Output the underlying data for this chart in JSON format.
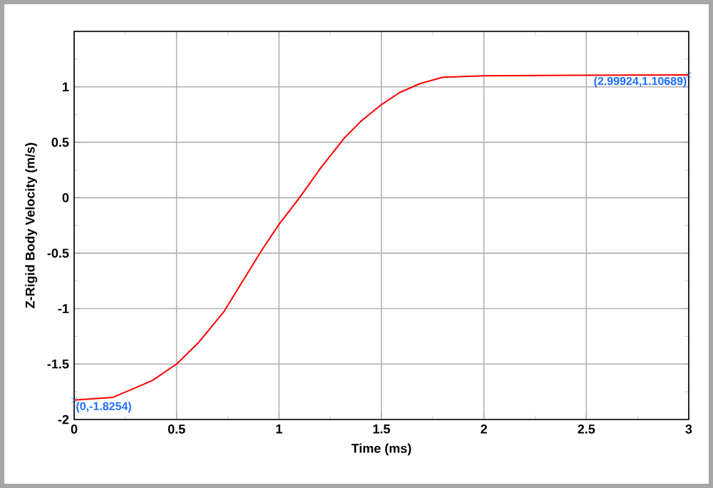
{
  "chart_data": {
    "type": "line",
    "xlabel": "Time (ms)",
    "ylabel": "Z-Rigid Body Velocity (m/s)",
    "x": [
      0,
      0.19,
      0.38,
      0.5,
      0.61,
      0.73,
      0.84,
      0.91,
      1.0,
      1.1,
      1.2,
      1.32,
      1.4,
      1.5,
      1.59,
      1.69,
      1.8,
      2.0,
      2.47,
      2.99924
    ],
    "series": [
      {
        "color": "#ff0000",
        "values": [
          -1.8254,
          -1.8,
          -1.65,
          -1.5,
          -1.3,
          -1.03,
          -0.7,
          -0.49,
          -0.24,
          0.0,
          0.26,
          0.54,
          0.69,
          0.84,
          0.95,
          1.03,
          1.086,
          1.1,
          1.105,
          1.10689
        ]
      }
    ],
    "xlim": [
      0,
      3
    ],
    "ylim": [
      -2,
      1.5
    ],
    "xticks": [
      0,
      0.5,
      1,
      1.5,
      2,
      2.5,
      3
    ],
    "yticks": [
      -2,
      -1.5,
      -1,
      -0.5,
      0,
      0.5,
      1,
      {
        "value": 1.5,
        "label": null
      }
    ],
    "grid": true,
    "marker": "none",
    "line_style": "solid",
    "annotations": [
      {
        "text": "(0,-1.8254)",
        "x": 0,
        "y": -1.8254
      },
      {
        "text": "(2.99924,1.10689)",
        "x": 2.99924,
        "y": 1.10689
      }
    ]
  }
}
